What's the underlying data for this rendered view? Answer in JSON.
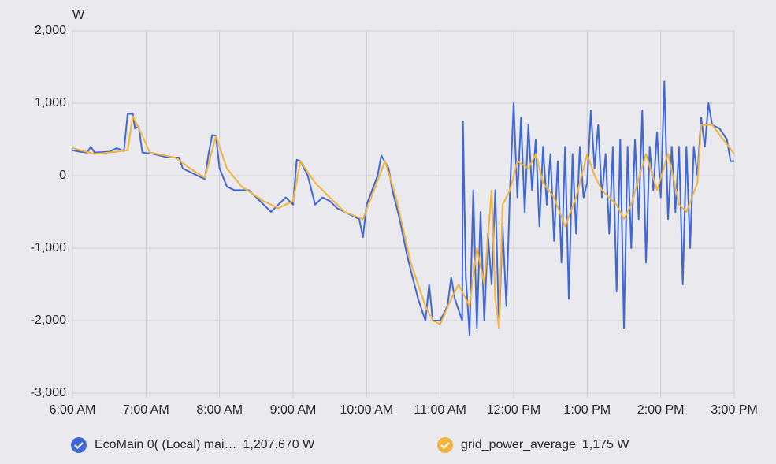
{
  "chart_data": {
    "type": "line",
    "y_label": "W",
    "xlim": [
      6,
      15
    ],
    "xticks": [
      {
        "value": 6,
        "label": "6:00 AM"
      },
      {
        "value": 7,
        "label": "7:00 AM"
      },
      {
        "value": 8,
        "label": "8:00 AM"
      },
      {
        "value": 9,
        "label": "9:00 AM"
      },
      {
        "value": 10,
        "label": "10:00 AM"
      },
      {
        "value": 11,
        "label": "11:00 AM"
      },
      {
        "value": 12,
        "label": "12:00 PM"
      },
      {
        "value": 13,
        "label": "1:00 PM"
      },
      {
        "value": 14,
        "label": "2:00 PM"
      },
      {
        "value": 15,
        "label": "3:00 PM"
      }
    ],
    "ylim": [
      -3000,
      2000
    ],
    "yticks": [
      {
        "value": -3000,
        "label": "-3,000"
      },
      {
        "value": -2000,
        "label": "-2,000"
      },
      {
        "value": -1000,
        "label": "-1,000"
      },
      0,
      {
        "value": 1000,
        "label": "1,000"
      },
      {
        "value": 2000,
        "label": "2,000"
      }
    ],
    "grid": true,
    "series": [
      {
        "name": "EcoMain 0( (Local) mai…",
        "legend_value": "1,207.670 W",
        "color": "#4068d4",
        "x": [
          6.0,
          6.1,
          6.2,
          6.25,
          6.3,
          6.5,
          6.6,
          6.7,
          6.75,
          6.82,
          6.85,
          6.9,
          6.95,
          7.1,
          7.3,
          7.45,
          7.5,
          7.6,
          7.7,
          7.8,
          7.85,
          7.9,
          7.95,
          8.0,
          8.1,
          8.2,
          8.4,
          8.5,
          8.6,
          8.7,
          8.8,
          8.9,
          9.0,
          9.05,
          9.1,
          9.2,
          9.3,
          9.4,
          9.5,
          9.6,
          9.8,
          9.9,
          9.95,
          10.0,
          10.15,
          10.2,
          10.3,
          10.35,
          10.45,
          10.55,
          10.6,
          10.7,
          10.8,
          10.85,
          10.9,
          11.0,
          11.1,
          11.15,
          11.2,
          11.3,
          11.31,
          11.35,
          11.4,
          11.45,
          11.5,
          11.55,
          11.6,
          11.65,
          11.7,
          11.75,
          11.8,
          11.85,
          11.9,
          11.95,
          12.0,
          12.05,
          12.1,
          12.15,
          12.2,
          12.25,
          12.3,
          12.35,
          12.4,
          12.45,
          12.5,
          12.55,
          12.6,
          12.65,
          12.7,
          12.75,
          12.8,
          12.85,
          12.9,
          12.95,
          13.0,
          13.05,
          13.1,
          13.15,
          13.2,
          13.25,
          13.3,
          13.35,
          13.4,
          13.45,
          13.5,
          13.55,
          13.6,
          13.65,
          13.7,
          13.75,
          13.8,
          13.85,
          13.9,
          13.95,
          14.0,
          14.05,
          14.1,
          14.15,
          14.2,
          14.25,
          14.3,
          14.35,
          14.4,
          14.45,
          14.5,
          14.55,
          14.6,
          14.65,
          14.7,
          14.8,
          14.9,
          14.95,
          15.0
        ],
        "values": [
          350,
          330,
          320,
          400,
          320,
          330,
          380,
          340,
          850,
          860,
          650,
          680,
          320,
          300,
          250,
          250,
          100,
          50,
          0,
          -50,
          300,
          560,
          550,
          100,
          -150,
          -200,
          -200,
          -300,
          -400,
          -500,
          -400,
          -300,
          -400,
          220,
          200,
          0,
          -400,
          -300,
          -350,
          -450,
          -550,
          -600,
          -850,
          -400,
          0,
          280,
          100,
          -200,
          -600,
          -1100,
          -1300,
          -1700,
          -2000,
          -1500,
          -2000,
          -2000,
          -1800,
          -1400,
          -1700,
          -2000,
          750,
          -1400,
          -2200,
          -200,
          -2100,
          -500,
          -2000,
          -800,
          -1500,
          -200,
          -2100,
          -700,
          -1800,
          -200,
          1000,
          -300,
          800,
          -500,
          700,
          -200,
          500,
          -700,
          400,
          -400,
          300,
          -900,
          200,
          -1200,
          400,
          -1700,
          300,
          -800,
          400,
          -300,
          -100,
          900,
          100,
          700,
          -300,
          300,
          -800,
          400,
          -1600,
          500,
          -2100,
          400,
          -1000,
          500,
          -600,
          900,
          -1200,
          400,
          -200,
          600,
          -300,
          1300,
          -600,
          400,
          -500,
          400,
          -1500,
          400,
          -1000,
          400,
          0,
          800,
          400,
          1000,
          700,
          650,
          500,
          200,
          200
        ]
      },
      {
        "name": "grid_power_average",
        "legend_value": "1,175 W",
        "color": "#f2b33d",
        "x": [
          6.0,
          6.3,
          6.6,
          6.75,
          6.82,
          6.95,
          7.05,
          7.4,
          7.6,
          7.8,
          7.95,
          8.1,
          8.3,
          8.6,
          8.8,
          9.0,
          9.1,
          9.3,
          9.5,
          9.7,
          9.95,
          10.1,
          10.25,
          10.4,
          10.6,
          10.8,
          10.9,
          11.0,
          11.15,
          11.25,
          11.4,
          11.5,
          11.6,
          11.7,
          11.75,
          11.8,
          11.85,
          11.95,
          12.05,
          12.2,
          12.3,
          12.4,
          12.55,
          12.7,
          12.85,
          13.0,
          13.1,
          13.2,
          13.4,
          13.5,
          13.6,
          13.8,
          13.95,
          14.1,
          14.25,
          14.35,
          14.5,
          14.55,
          14.7,
          14.85,
          15.0
        ],
        "values": [
          380,
          300,
          330,
          350,
          820,
          550,
          320,
          250,
          100,
          -30,
          540,
          100,
          -150,
          -350,
          -450,
          -350,
          200,
          -100,
          -300,
          -500,
          -600,
          -200,
          200,
          -300,
          -1200,
          -1800,
          -2000,
          -2050,
          -1700,
          -1500,
          -1800,
          -1000,
          -1500,
          -200,
          -1700,
          -2100,
          -400,
          -200,
          200,
          100,
          300,
          -100,
          -300,
          -700,
          -300,
          300,
          0,
          -200,
          -400,
          -600,
          -400,
          300,
          -200,
          300,
          -400,
          -500,
          -100,
          700,
          700,
          500,
          300
        ]
      }
    ]
  }
}
